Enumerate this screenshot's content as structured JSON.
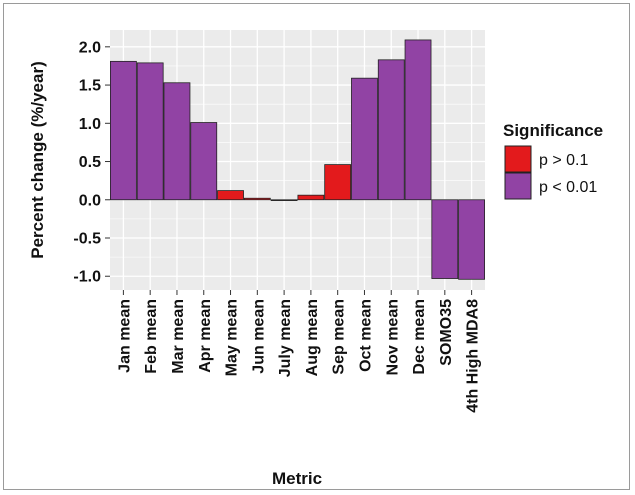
{
  "chart_data": {
    "type": "bar",
    "title": "",
    "xlabel": "Metric",
    "ylabel": "Percent change (%/year)",
    "ylim": [
      -1.18,
      2.22
    ],
    "yticks": [
      -1.0,
      -0.5,
      0.0,
      0.5,
      1.0,
      1.5,
      2.0
    ],
    "ytick_labels": [
      "-1.0",
      "-0.5",
      "0.0",
      "0.5",
      "1.0",
      "1.5",
      "2.0"
    ],
    "grid": true,
    "categories": [
      "Jan mean",
      "Feb mean",
      "Mar mean",
      "Apr mean",
      "May mean",
      "Jun mean",
      "July mean",
      "Aug mean",
      "Sep mean",
      "Oct mean",
      "Nov mean",
      "Dec mean",
      "SOMO35",
      "4th High MDA8"
    ],
    "values": [
      1.81,
      1.79,
      1.53,
      1.01,
      0.12,
      0.02,
      -0.01,
      0.06,
      0.46,
      1.59,
      1.83,
      2.09,
      -1.03,
      -1.04
    ],
    "significance": [
      "p < 0.01",
      "p < 0.01",
      "p < 0.01",
      "p < 0.01",
      "p > 0.1",
      "p > 0.1",
      "p > 0.1",
      "p > 0.1",
      "p > 0.1",
      "p < 0.01",
      "p < 0.01",
      "p < 0.01",
      "p < 0.01",
      "p < 0.01"
    ],
    "legend": {
      "title": "Significance",
      "position": "right",
      "entries": [
        {
          "label": "p > 0.1",
          "color": "#e31a1c"
        },
        {
          "label": "p < 0.01",
          "color": "#9143a4"
        }
      ]
    },
    "colors": {
      "panel_background": "#ebebeb",
      "grid_line": "#ffffff",
      "bar_border": "#222222"
    }
  }
}
